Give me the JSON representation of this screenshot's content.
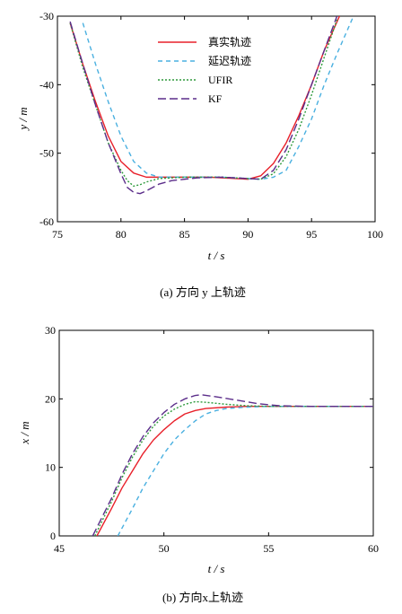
{
  "chart_data": [
    {
      "type": "line",
      "xlabel": "t / s",
      "ylabel": "y / m",
      "xlim": [
        75,
        100
      ],
      "ylim": [
        -60,
        -30
      ],
      "xticks": [
        75,
        80,
        85,
        90,
        95,
        100
      ],
      "yticks": [
        -60,
        -50,
        -40,
        -30
      ],
      "caption": "(a) 方向 y 上轨迹",
      "legend_position": "top-center",
      "grid": false,
      "series": [
        {
          "name": "真实轨迹",
          "color": "#e8202a",
          "dash": "",
          "x": [
            76.0,
            77.0,
            78.0,
            79.0,
            80.0,
            81.0,
            82.0,
            84.0,
            87.0,
            90.0,
            91.0,
            92.0,
            93.0,
            94.0,
            95.0,
            96.0,
            97.2
          ],
          "y": [
            -31.0,
            -37.0,
            -42.5,
            -47.5,
            -51.2,
            -52.9,
            -53.5,
            -53.5,
            -53.5,
            -53.8,
            -53.3,
            -51.5,
            -48.5,
            -44.5,
            -40.0,
            -35.0,
            -30.0
          ]
        },
        {
          "name": "延迟轨迹",
          "color": "#4ab0e0",
          "dash": "5,4",
          "x": [
            77.0,
            78.0,
            79.0,
            80.0,
            81.0,
            82.0,
            83.0,
            85.0,
            88.0,
            91.0,
            92.0,
            93.0,
            94.0,
            95.0,
            96.0,
            97.0,
            98.3
          ],
          "y": [
            -31.0,
            -37.0,
            -42.5,
            -47.5,
            -51.2,
            -52.9,
            -53.5,
            -53.5,
            -53.5,
            -53.8,
            -53.5,
            -52.5,
            -49.0,
            -45.0,
            -40.0,
            -35.5,
            -30.0
          ]
        },
        {
          "name": "UFIR",
          "color": "#2e9a3c",
          "dash": "2,2",
          "x": [
            76.0,
            77.0,
            78.0,
            79.0,
            80.0,
            80.5,
            81.0,
            81.5,
            82.0,
            83.0,
            85.0,
            88.0,
            91.0,
            92.0,
            93.0,
            94.0,
            95.0,
            96.0,
            97.0
          ],
          "y": [
            -31.0,
            -37.5,
            -43.0,
            -48.5,
            -52.5,
            -54.0,
            -54.8,
            -54.6,
            -54.2,
            -53.7,
            -53.5,
            -53.5,
            -53.8,
            -53.0,
            -50.5,
            -46.5,
            -41.5,
            -36.0,
            -30.5
          ]
        },
        {
          "name": "KF",
          "color": "#5b2d8a",
          "dash": "9,4",
          "x": [
            76.0,
            77.0,
            78.0,
            79.0,
            80.0,
            80.5,
            81.0,
            81.5,
            82.0,
            83.0,
            84.0,
            86.0,
            88.0,
            91.0,
            92.0,
            93.0,
            94.0,
            95.0,
            96.0,
            97.0
          ],
          "y": [
            -30.8,
            -37.0,
            -43.0,
            -48.5,
            -53.0,
            -55.0,
            -55.7,
            -55.9,
            -55.5,
            -54.5,
            -54.0,
            -53.6,
            -53.5,
            -53.8,
            -52.5,
            -49.5,
            -45.0,
            -40.0,
            -35.0,
            -30.0
          ]
        }
      ]
    },
    {
      "type": "line",
      "xlabel": "t / s",
      "ylabel": "x / m",
      "xlim": [
        45,
        60
      ],
      "ylim": [
        0,
        30
      ],
      "xticks": [
        45,
        50,
        55,
        60
      ],
      "yticks": [
        0,
        10,
        20,
        30
      ],
      "caption": "(b) 方向x上轨迹",
      "grid": false,
      "series": [
        {
          "name": "真实轨迹",
          "color": "#e8202a",
          "dash": "",
          "x": [
            46.8,
            47.5,
            48.0,
            48.5,
            49.0,
            49.5,
            50.0,
            50.5,
            51.0,
            51.5,
            52.0,
            53.0,
            54.0,
            55.0,
            57.0,
            60.0
          ],
          "y": [
            0.0,
            4.0,
            7.0,
            9.5,
            12.0,
            14.0,
            15.5,
            16.8,
            17.8,
            18.3,
            18.6,
            18.8,
            18.9,
            18.9,
            18.9,
            18.9
          ]
        },
        {
          "name": "延迟轨迹",
          "color": "#4ab0e0",
          "dash": "5,4",
          "x": [
            47.8,
            48.5,
            49.0,
            49.5,
            50.0,
            50.5,
            51.0,
            51.5,
            52.0,
            52.5,
            53.0,
            54.0,
            55.0,
            56.0,
            58.0,
            60.0
          ],
          "y": [
            0.0,
            4.0,
            7.0,
            9.5,
            12.0,
            14.0,
            15.5,
            16.8,
            17.8,
            18.3,
            18.6,
            18.8,
            18.9,
            18.9,
            18.9,
            18.9
          ]
        },
        {
          "name": "UFIR",
          "color": "#2e9a3c",
          "dash": "2,2",
          "x": [
            46.7,
            47.5,
            48.0,
            48.5,
            49.0,
            49.5,
            50.0,
            50.5,
            51.0,
            51.5,
            52.0,
            53.0,
            54.0,
            55.0,
            57.0,
            60.0
          ],
          "y": [
            0.0,
            5.0,
            8.5,
            11.5,
            14.0,
            16.0,
            17.5,
            18.5,
            19.2,
            19.6,
            19.5,
            19.2,
            19.0,
            18.9,
            18.9,
            18.9
          ]
        },
        {
          "name": "KF",
          "color": "#5b2d8a",
          "dash": "9,4",
          "x": [
            46.6,
            47.5,
            48.0,
            48.5,
            49.0,
            49.5,
            50.0,
            50.5,
            51.0,
            51.5,
            51.8,
            52.5,
            53.5,
            54.5,
            55.5,
            57.0,
            60.0
          ],
          "y": [
            0.0,
            5.5,
            9.0,
            12.0,
            14.5,
            16.5,
            18.0,
            19.2,
            20.0,
            20.5,
            20.6,
            20.3,
            19.8,
            19.3,
            19.0,
            18.9,
            18.9
          ]
        }
      ]
    }
  ]
}
